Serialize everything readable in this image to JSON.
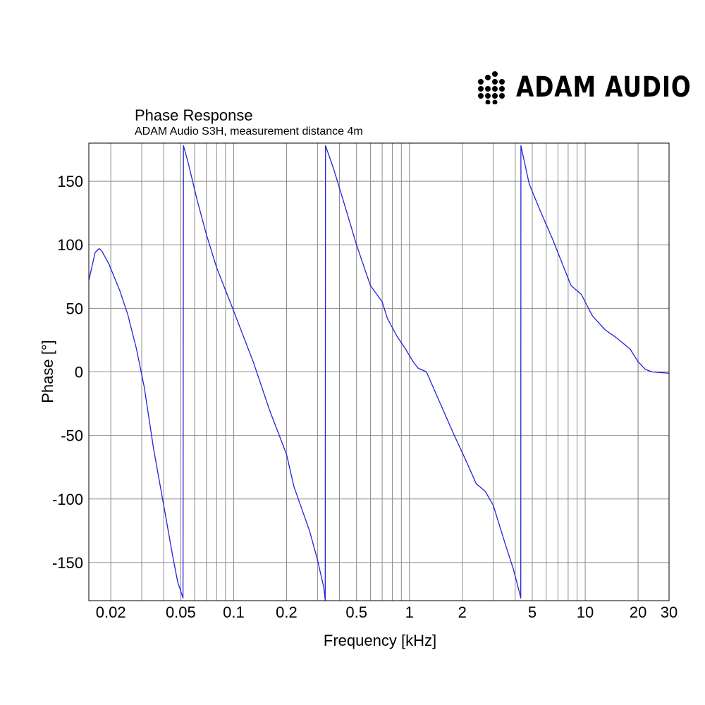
{
  "brand": {
    "name": "ADAM AUDIO"
  },
  "chart_data": {
    "type": "line",
    "title": "Phase Response",
    "subtitle": "ADAM Audio S3H, measurement distance 4m",
    "xlabel": "Frequency [kHz]",
    "ylabel": "Phase [°]",
    "x_scale": "log",
    "xlim": [
      0.015,
      30
    ],
    "ylim": [
      -180,
      180
    ],
    "x_ticks": [
      {
        "value": 0.02,
        "label": "0.02"
      },
      {
        "value": 0.05,
        "label": "0.05"
      },
      {
        "value": 0.1,
        "label": "0.1"
      },
      {
        "value": 0.2,
        "label": "0.2"
      },
      {
        "value": 0.5,
        "label": "0.5"
      },
      {
        "value": 1,
        "label": "1"
      },
      {
        "value": 2,
        "label": "2"
      },
      {
        "value": 5,
        "label": "5"
      },
      {
        "value": 10,
        "label": "10"
      },
      {
        "value": 20,
        "label": "20"
      },
      {
        "value": 30,
        "label": "30"
      }
    ],
    "y_ticks": [
      {
        "value": 150,
        "label": "150"
      },
      {
        "value": 100,
        "label": "100"
      },
      {
        "value": 50,
        "label": "50"
      },
      {
        "value": 0,
        "label": "0"
      },
      {
        "value": -50,
        "label": "-50"
      },
      {
        "value": -100,
        "label": "-100"
      },
      {
        "value": -150,
        "label": "-150"
      }
    ],
    "grid": true,
    "line_color": "#2222dd",
    "series": [
      {
        "points": [
          [
            0.015,
            72
          ],
          [
            0.0163,
            94
          ],
          [
            0.0172,
            97
          ],
          [
            0.0178,
            95
          ],
          [
            0.0195,
            85
          ],
          [
            0.0225,
            64
          ],
          [
            0.025,
            45
          ],
          [
            0.028,
            18
          ],
          [
            0.031,
            -12
          ],
          [
            0.035,
            -60
          ],
          [
            0.04,
            -105
          ],
          [
            0.045,
            -145
          ],
          [
            0.048,
            -165
          ],
          [
            0.0515,
            -178
          ],
          [
            0.0518,
            178
          ],
          [
            0.055,
            165
          ],
          [
            0.062,
            135
          ],
          [
            0.07,
            108
          ],
          [
            0.08,
            82
          ],
          [
            0.1,
            48
          ],
          [
            0.13,
            7
          ],
          [
            0.16,
            -30
          ],
          [
            0.2,
            -65
          ],
          [
            0.22,
            -90
          ],
          [
            0.27,
            -125
          ],
          [
            0.3,
            -148
          ],
          [
            0.326,
            -170
          ],
          [
            0.332,
            -180
          ],
          [
            0.333,
            178
          ],
          [
            0.37,
            160
          ],
          [
            0.42,
            135
          ],
          [
            0.5,
            100
          ],
          [
            0.56,
            80
          ],
          [
            0.6,
            68
          ],
          [
            0.7,
            55
          ],
          [
            0.75,
            42
          ],
          [
            0.85,
            28
          ],
          [
            0.95,
            18
          ],
          [
            1.05,
            8
          ],
          [
            1.12,
            3
          ],
          [
            1.25,
            0
          ],
          [
            1.5,
            -25
          ],
          [
            1.8,
            -50
          ],
          [
            2.1,
            -70
          ],
          [
            2.4,
            -88
          ],
          [
            2.7,
            -94
          ],
          [
            3.0,
            -105
          ],
          [
            3.5,
            -135
          ],
          [
            3.9,
            -155
          ],
          [
            4.2,
            -172
          ],
          [
            4.3,
            -178
          ],
          [
            4.31,
            178
          ],
          [
            4.8,
            148
          ],
          [
            5.5,
            128
          ],
          [
            6.5,
            105
          ],
          [
            8.3,
            68
          ],
          [
            9.5,
            61
          ],
          [
            11,
            44
          ],
          [
            13,
            33
          ],
          [
            15,
            27
          ],
          [
            18,
            18
          ],
          [
            20,
            8
          ],
          [
            22,
            2
          ],
          [
            24,
            0
          ],
          [
            30,
            -1
          ]
        ]
      }
    ]
  }
}
